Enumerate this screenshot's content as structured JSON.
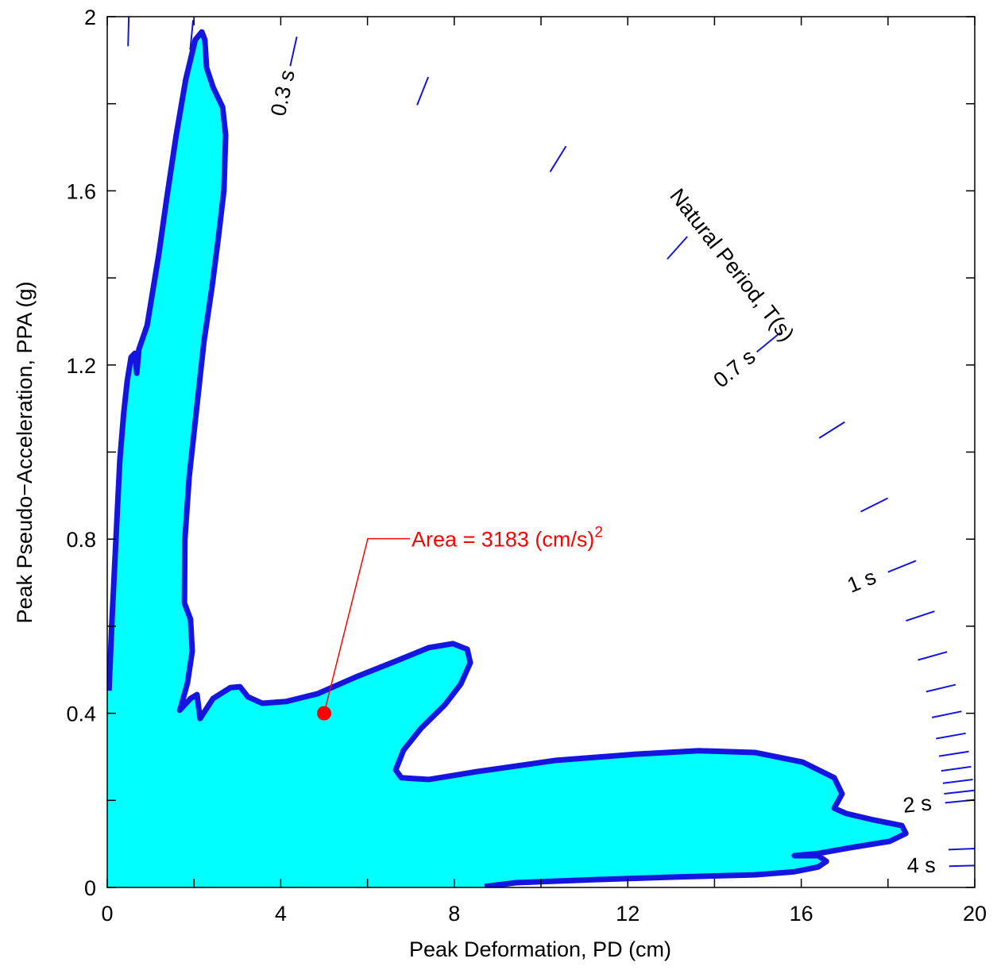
{
  "chart_data": {
    "type": "area",
    "xlabel": "Peak Deformation, PD (cm)",
    "ylabel": "Peak Pseudo−Acceleration, PPA (g)",
    "xlim": [
      0,
      20
    ],
    "ylim": [
      0,
      2
    ],
    "xticks": [
      0,
      4,
      8,
      12,
      16,
      20
    ],
    "yticks": [
      0,
      0.4,
      0.8,
      1.2,
      1.6,
      2
    ],
    "xminorticks": [
      2,
      6,
      10,
      14,
      18
    ],
    "yminorticks": [
      0.2,
      0.6,
      1.0,
      1.4,
      1.8
    ],
    "fill_color": "#00ffff",
    "line_color": "#1515e0",
    "x": [
      0.04,
      0.11,
      0.2,
      0.29,
      0.38,
      0.46,
      0.55,
      0.64,
      0.68,
      0.73,
      0.92,
      1.04,
      1.19,
      1.37,
      1.59,
      1.81,
      2.03,
      2.18,
      2.25,
      2.29,
      2.44,
      2.66,
      2.73,
      2.69,
      2.56,
      2.42,
      2.23,
      2.05,
      1.89,
      1.79,
      1.78,
      1.92,
      1.96,
      1.85,
      1.7,
      1.67,
      1.92,
      2.07,
      2.14,
      2.44,
      2.84,
      3.06,
      3.24,
      3.57,
      4.12,
      4.85,
      5.77,
      6.68,
      7.42,
      7.97,
      8.3,
      8.37,
      8.15,
      7.78,
      7.23,
      6.83,
      6.65,
      6.78,
      7.42,
      8.52,
      10.35,
      12.18,
      13.64,
      14.93,
      16.03,
      16.76,
      16.94,
      16.76,
      17.03,
      17.67,
      18.32,
      18.41,
      18.04,
      17.12,
      16.39,
      15.84,
      16.39,
      16.58,
      16.39,
      15.84,
      14.93,
      13.1,
      11.26,
      9.43,
      8.7
    ],
    "y": [
      0.452,
      0.616,
      0.799,
      0.981,
      1.09,
      1.163,
      1.218,
      1.227,
      1.181,
      1.236,
      1.291,
      1.364,
      1.455,
      1.582,
      1.728,
      1.856,
      1.947,
      1.965,
      1.947,
      1.883,
      1.838,
      1.792,
      1.728,
      1.601,
      1.491,
      1.382,
      1.254,
      1.09,
      0.944,
      0.799,
      0.653,
      0.616,
      0.543,
      0.47,
      0.416,
      0.407,
      0.434,
      0.443,
      0.388,
      0.434,
      0.459,
      0.461,
      0.438,
      0.423,
      0.427,
      0.445,
      0.485,
      0.521,
      0.551,
      0.56,
      0.547,
      0.516,
      0.467,
      0.419,
      0.365,
      0.315,
      0.27,
      0.252,
      0.248,
      0.266,
      0.292,
      0.306,
      0.314,
      0.31,
      0.288,
      0.252,
      0.215,
      0.182,
      0.17,
      0.155,
      0.142,
      0.124,
      0.106,
      0.091,
      0.078,
      0.073,
      0.073,
      0.06,
      0.047,
      0.036,
      0.029,
      0.024,
      0.018,
      0.011,
      0.002
    ],
    "period_marks": [
      0.1,
      0.2,
      0.3,
      0.4,
      0.5,
      0.6,
      0.7,
      0.8,
      0.9,
      1.0,
      1.1,
      1.2,
      1.3,
      1.4,
      1.5,
      1.6,
      1.7,
      1.8,
      1.9,
      2.0,
      3,
      4
    ],
    "period_color": "#1515e0",
    "period_labels": [
      {
        "value": 0.3,
        "label": "0.3 s"
      },
      {
        "value": 0.7,
        "label": "0.7 s"
      },
      {
        "value": 1,
        "label": "1 s"
      },
      {
        "value": 2,
        "label": "2 s"
      },
      {
        "value": 4,
        "label": "4 s"
      }
    ],
    "period_title": "Natural Period, T(s)",
    "annotation": {
      "text": "Area = 3183 (cm/s)",
      "superscript": "2",
      "x": 5,
      "y": 0.4,
      "color": "#ff0000"
    }
  }
}
